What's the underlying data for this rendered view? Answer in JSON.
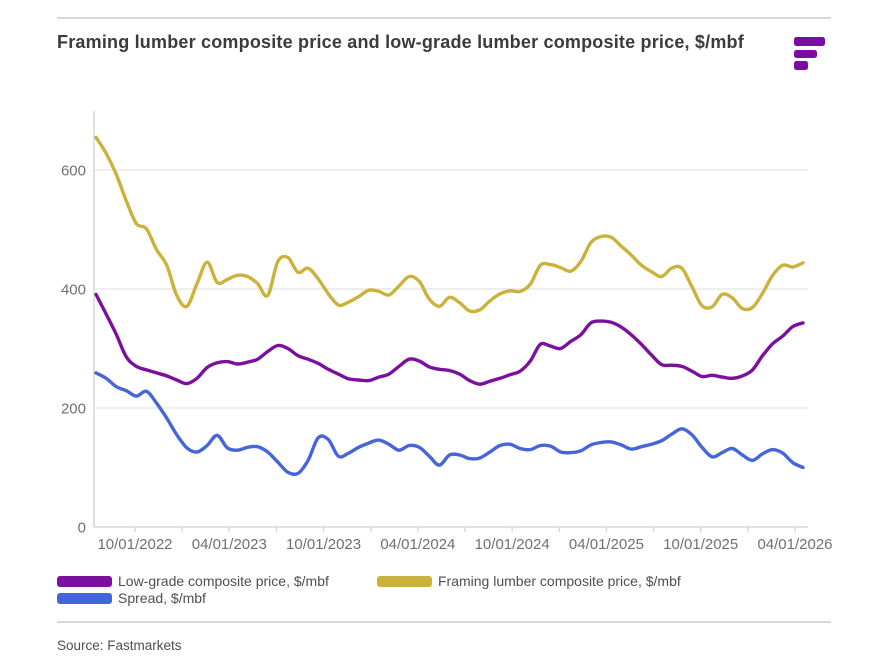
{
  "header": {
    "title": "Framing lumber composite price and low-grade lumber composite price, $/mbf",
    "logo_name": "fastmarkets-logo",
    "logo_color": "#7A0DA1"
  },
  "chart_data": {
    "type": "line",
    "title": "Framing lumber composite price and low-grade lumber composite price, $/mbf",
    "xlabel": "",
    "ylabel": "$/mbf",
    "ylim": [
      0,
      700
    ],
    "y_ticks": [
      0,
      200,
      400,
      600
    ],
    "grid": "horizontal",
    "legend_position": "bottom",
    "x_axis": {
      "tick_labels": [
        "10/01/2022",
        "04/01/2023",
        "10/01/2023",
        "04/01/2024",
        "10/01/2024",
        "04/01/2025",
        "10/01/2025",
        "04/01/2026"
      ],
      "minor_ticks_between_labels": 1
    },
    "series": [
      {
        "name": "Low-grade composite price, $/mbf",
        "color": "#7B0F9E",
        "values": [
          391,
          358,
          324,
          286,
          270,
          264,
          259,
          254,
          247,
          241,
          250,
          268,
          276,
          278,
          274,
          277,
          282,
          295,
          305,
          300,
          288,
          282,
          275,
          265,
          257,
          249,
          247,
          246,
          252,
          257,
          270,
          282,
          279,
          269,
          265,
          263,
          257,
          246,
          240,
          245,
          250,
          256,
          262,
          279,
          307,
          304,
          300,
          312,
          323,
          343,
          346,
          344,
          336,
          323,
          307,
          289,
          273,
          272,
          270,
          262,
          253,
          255,
          252,
          250,
          254,
          264,
          288,
          308,
          321,
          337,
          343
        ]
      },
      {
        "name": "Spread, $/mbf",
        "color": "#4566D9",
        "values": [
          259,
          250,
          236,
          229,
          220,
          228,
          208,
          183,
          155,
          133,
          126,
          137,
          154,
          133,
          129,
          134,
          135,
          126,
          109,
          92,
          90,
          112,
          150,
          147,
          119,
          124,
          134,
          141,
          146,
          139,
          129,
          137,
          134,
          119,
          104,
          121,
          121,
          115,
          116,
          126,
          137,
          139,
          132,
          130,
          137,
          136,
          126,
          125,
          128,
          138,
          142,
          143,
          138,
          131,
          135,
          139,
          145,
          156,
          165,
          155,
          134,
          118,
          125,
          132,
          121,
          112,
          123,
          130,
          124,
          108,
          100
        ]
      },
      {
        "name": "Framing lumber composite price, $/mbf",
        "color": "#CBB23B",
        "values": [
          655,
          628,
          593,
          548,
          510,
          501,
          466,
          440,
          389,
          371,
          409,
          445,
          411,
          416,
          423,
          421,
          409,
          389,
          446,
          453,
          428,
          435,
          417,
          392,
          373,
          378,
          387,
          398,
          396,
          390,
          405,
          421,
          413,
          383,
          371,
          386,
          377,
          363,
          365,
          380,
          392,
          397,
          396,
          408,
          440,
          441,
          436,
          430,
          446,
          478,
          488,
          487,
          472,
          457,
          440,
          429,
          421,
          435,
          435,
          404,
          372,
          370,
          391,
          385,
          367,
          369,
          393,
          423,
          440,
          437,
          444
        ]
      }
    ]
  },
  "footer": {
    "source": "Source: Fastmarkets"
  }
}
